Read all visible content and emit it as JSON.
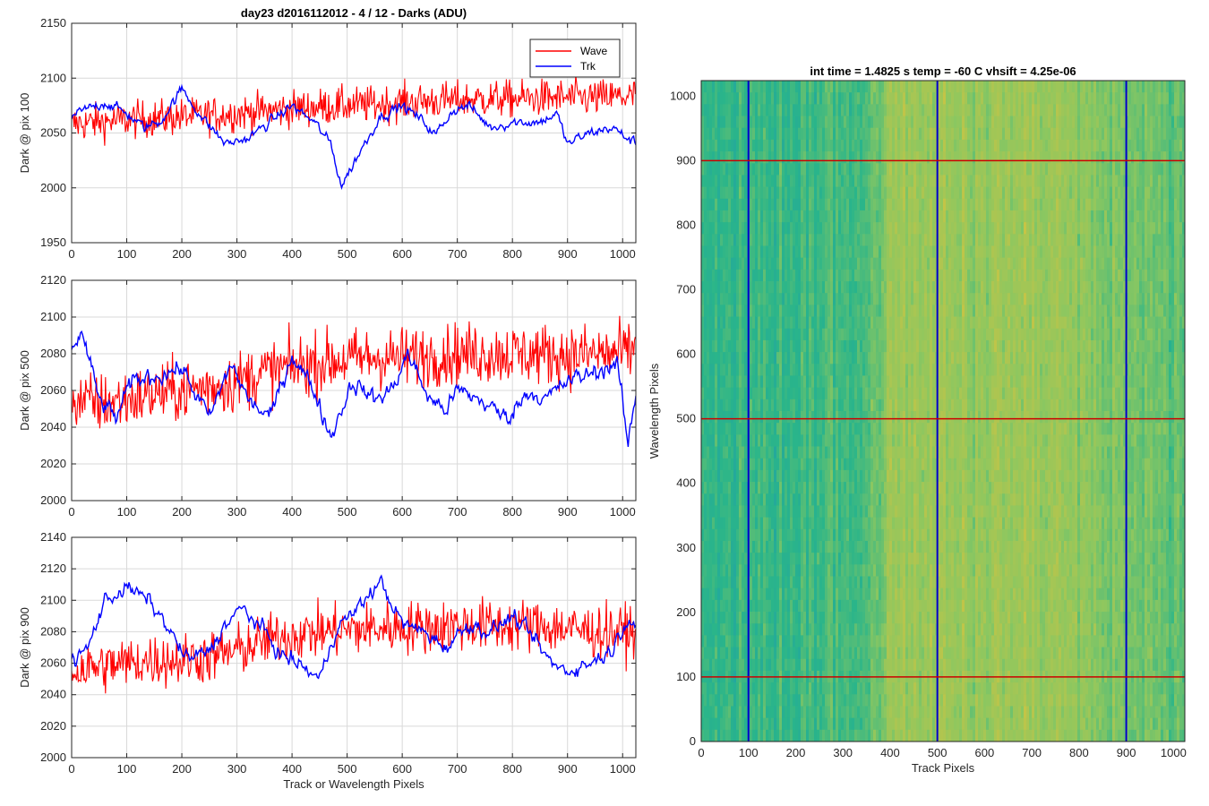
{
  "figure_title": "day23 d2016112012 - 4 / 12 - Darks (ADU)",
  "colors": {
    "wave": "#ff0000",
    "trk": "#0000ff",
    "grid": "#d9d9d9",
    "axis": "#262626"
  },
  "chart_data": [
    {
      "type": "line",
      "title": "day23 d2016112012 - 4 / 12 - Darks (ADU)",
      "xlabel": "",
      "ylabel": "Dark @ pix 100",
      "xlim": [
        0,
        1024
      ],
      "ylim": [
        1950,
        2150
      ],
      "xticks": [
        0,
        100,
        200,
        300,
        400,
        500,
        600,
        700,
        800,
        900,
        1000
      ],
      "yticks": [
        1950,
        2000,
        2050,
        2100,
        2150
      ],
      "grid": true,
      "legend": {
        "placement": "top-right",
        "entries": [
          "Wave",
          "Trk"
        ]
      },
      "series": [
        {
          "name": "Wave",
          "color": "#ff0000",
          "x": [
            0,
            50,
            100,
            150,
            200,
            250,
            300,
            350,
            400,
            450,
            500,
            550,
            600,
            650,
            700,
            750,
            800,
            850,
            900,
            950,
            1000,
            1024
          ],
          "values": [
            2058,
            2060,
            2062,
            2063,
            2065,
            2066,
            2068,
            2070,
            2072,
            2074,
            2075,
            2076,
            2078,
            2079,
            2080,
            2081,
            2081,
            2082,
            2082,
            2082,
            2083,
            2083
          ]
        },
        {
          "name": "Trk",
          "color": "#0000ff",
          "x": [
            0,
            30,
            60,
            100,
            130,
            160,
            200,
            240,
            280,
            320,
            360,
            400,
            440,
            470,
            490,
            520,
            560,
            600,
            640,
            660,
            690,
            720,
            760,
            800,
            850,
            880,
            900,
            940,
            980,
            1024
          ],
          "values": [
            2065,
            2072,
            2078,
            2068,
            2055,
            2060,
            2090,
            2062,
            2040,
            2045,
            2060,
            2075,
            2060,
            2040,
            2002,
            2030,
            2065,
            2075,
            2060,
            2048,
            2070,
            2075,
            2055,
            2060,
            2060,
            2068,
            2040,
            2050,
            2055,
            2040
          ]
        }
      ]
    },
    {
      "type": "line",
      "title": "",
      "xlabel": "",
      "ylabel": "Dark @ pix 500",
      "xlim": [
        0,
        1024
      ],
      "ylim": [
        2000,
        2120
      ],
      "xticks": [
        0,
        100,
        200,
        300,
        400,
        500,
        600,
        700,
        800,
        900,
        1000
      ],
      "yticks": [
        2000,
        2020,
        2040,
        2060,
        2080,
        2100,
        2120
      ],
      "grid": true,
      "series": [
        {
          "name": "Wave",
          "color": "#ff0000",
          "x": [
            0,
            50,
            100,
            150,
            200,
            250,
            300,
            350,
            400,
            450,
            500,
            550,
            600,
            650,
            700,
            750,
            800,
            850,
            900,
            950,
            1000,
            1024
          ],
          "values": [
            2055,
            2053,
            2055,
            2058,
            2060,
            2062,
            2065,
            2070,
            2073,
            2075,
            2077,
            2078,
            2078,
            2079,
            2080,
            2080,
            2080,
            2080,
            2079,
            2080,
            2080,
            2082
          ]
        },
        {
          "name": "Trk",
          "color": "#0000ff",
          "x": [
            0,
            20,
            50,
            80,
            110,
            150,
            200,
            250,
            290,
            320,
            360,
            400,
            440,
            470,
            510,
            550,
            580,
            610,
            650,
            680,
            700,
            740,
            790,
            830,
            860,
            900,
            950,
            990,
            1010,
            1024
          ],
          "values": [
            2085,
            2090,
            2055,
            2045,
            2065,
            2068,
            2072,
            2045,
            2075,
            2055,
            2045,
            2080,
            2060,
            2035,
            2065,
            2055,
            2060,
            2080,
            2055,
            2050,
            2060,
            2055,
            2045,
            2060,
            2055,
            2065,
            2070,
            2075,
            2030,
            2058
          ]
        }
      ]
    },
    {
      "type": "line",
      "title": "",
      "xlabel": "Track or Wavelength Pixels",
      "ylabel": "Dark @ pix 900",
      "xlim": [
        0,
        1024
      ],
      "ylim": [
        2000,
        2140
      ],
      "xticks": [
        0,
        100,
        200,
        300,
        400,
        500,
        600,
        700,
        800,
        900,
        1000
      ],
      "yticks": [
        2000,
        2020,
        2040,
        2060,
        2080,
        2100,
        2120,
        2140
      ],
      "grid": true,
      "series": [
        {
          "name": "Wave",
          "color": "#ff0000",
          "x": [
            0,
            50,
            100,
            150,
            200,
            250,
            300,
            350,
            400,
            450,
            500,
            550,
            600,
            650,
            700,
            750,
            800,
            850,
            900,
            950,
            1000,
            1024
          ],
          "values": [
            2055,
            2058,
            2060,
            2062,
            2062,
            2064,
            2068,
            2074,
            2078,
            2080,
            2081,
            2082,
            2083,
            2083,
            2084,
            2084,
            2084,
            2084,
            2082,
            2080,
            2080,
            2080
          ]
        },
        {
          "name": "Trk",
          "color": "#0000ff",
          "x": [
            0,
            30,
            60,
            100,
            140,
            170,
            210,
            250,
            280,
            310,
            350,
            380,
            410,
            450,
            480,
            520,
            560,
            600,
            640,
            680,
            720,
            760,
            800,
            840,
            870,
            900,
            940,
            980,
            1010,
            1024
          ],
          "values": [
            2060,
            2070,
            2100,
            2108,
            2100,
            2085,
            2062,
            2068,
            2085,
            2095,
            2080,
            2065,
            2060,
            2050,
            2082,
            2095,
            2112,
            2085,
            2080,
            2070,
            2085,
            2080,
            2090,
            2075,
            2060,
            2055,
            2060,
            2068,
            2090,
            2085
          ]
        }
      ]
    },
    {
      "type": "heatmap",
      "title": "int time = 1.4825 s    temp = -60 C    vhsift = 4.25e-06",
      "xlabel": "Track Pixels",
      "ylabel": "Wavelength Pixels",
      "xlim": [
        0,
        1024
      ],
      "ylim": [
        0,
        1024
      ],
      "xticks": [
        0,
        100,
        200,
        300,
        400,
        500,
        600,
        700,
        800,
        900,
        1000
      ],
      "yticks": [
        0,
        100,
        200,
        300,
        400,
        500,
        600,
        700,
        800,
        900,
        1000
      ],
      "grid": false,
      "colormap": [
        "#1fa0a8",
        "#2ab58a",
        "#8cc760",
        "#c9c444"
      ],
      "column_profile": [
        {
          "x": 0,
          "level": 0.35
        },
        {
          "x": 200,
          "level": 0.38
        },
        {
          "x": 350,
          "level": 0.45
        },
        {
          "x": 400,
          "level": 0.75
        },
        {
          "x": 500,
          "level": 0.78
        },
        {
          "x": 600,
          "level": 0.72
        },
        {
          "x": 700,
          "level": 0.8
        },
        {
          "x": 800,
          "level": 0.7
        },
        {
          "x": 900,
          "level": 0.62
        },
        {
          "x": 1024,
          "level": 0.5
        }
      ],
      "vertical_lines": {
        "color": "#0000cc",
        "x": [
          100,
          500,
          900
        ]
      },
      "horizontal_lines": {
        "color": "#cc0000",
        "y": [
          100,
          500,
          900
        ]
      }
    }
  ]
}
